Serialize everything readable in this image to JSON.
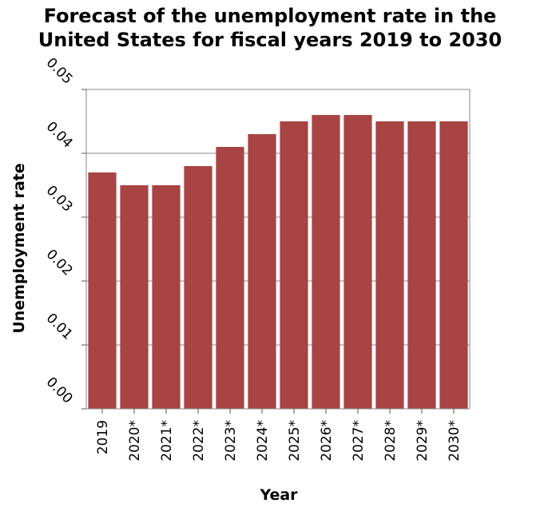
{
  "chart_data": {
    "type": "bar",
    "title_lines": [
      "Forecast of the unemployment rate in the",
      "United States for fiscal years 2019 to 2030"
    ],
    "xlabel": "Year",
    "ylabel": "Unemployment rate",
    "categories": [
      "2019",
      "2020*",
      "2021*",
      "2022*",
      "2023*",
      "2024*",
      "2025*",
      "2026*",
      "2027*",
      "2028*",
      "2029*",
      "2030*"
    ],
    "values": [
      0.037,
      0.035,
      0.035,
      0.038,
      0.041,
      0.043,
      0.045,
      0.046,
      0.046,
      0.045,
      0.045,
      0.045
    ],
    "ylim": [
      0,
      0.05
    ],
    "yticks": [
      "0.00",
      "0.01",
      "0.02",
      "0.03",
      "0.04",
      "0.05"
    ],
    "grid": true,
    "legend": "none",
    "bar_color": "#a84444",
    "grid_color": "#888888"
  }
}
